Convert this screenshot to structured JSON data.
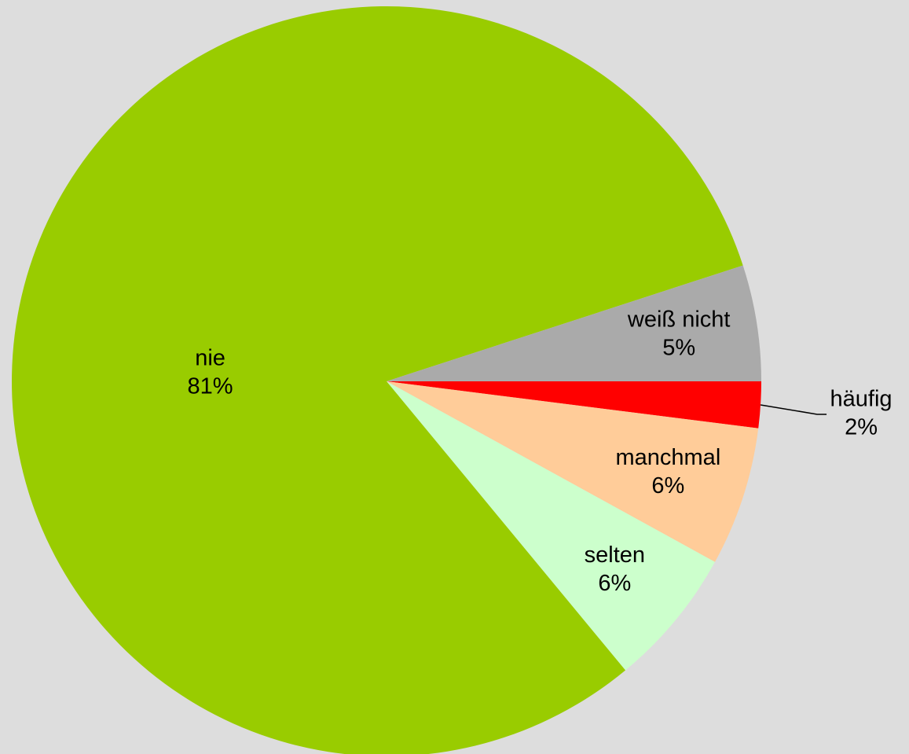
{
  "chart_data": {
    "type": "pie",
    "categories": [
      "häufig",
      "manchmal",
      "selten",
      "nie",
      "weiß nicht"
    ],
    "values": [
      2,
      6,
      6,
      81,
      5
    ],
    "value_labels": [
      "2%",
      "6%",
      "6%",
      "81%",
      "5%"
    ],
    "colors": [
      "#ff0000",
      "#ffcc99",
      "#ccffcc",
      "#99cc00",
      "#aaaaaa"
    ]
  }
}
